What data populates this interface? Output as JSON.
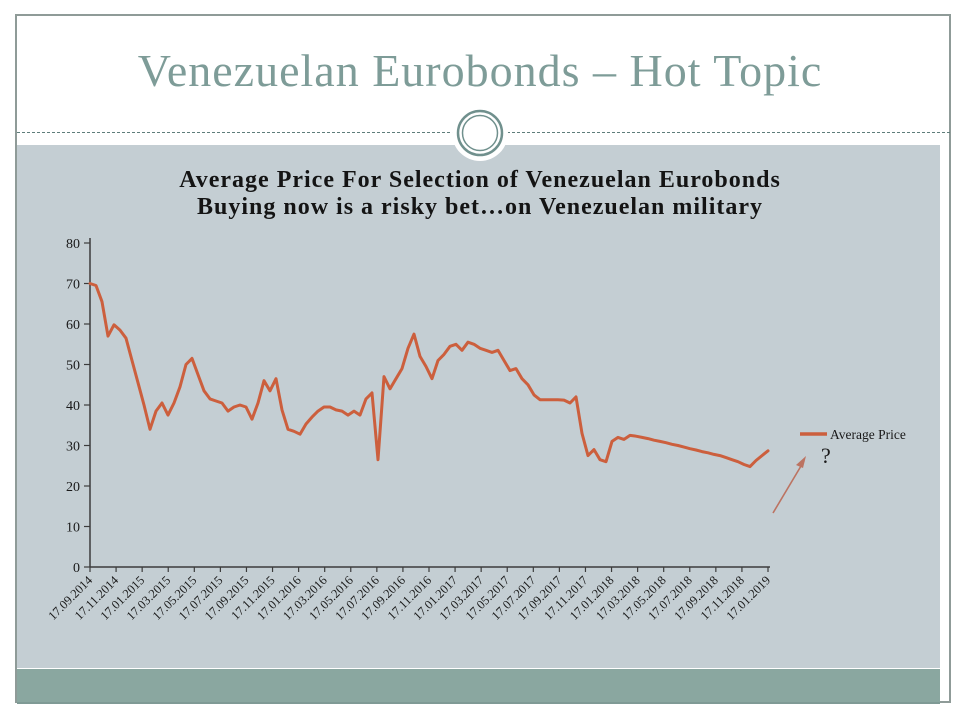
{
  "slide": {
    "title": "Venezuelan Eurobonds – Hot Topic"
  },
  "chart": {
    "title_line1": "Average Price For Selection of Venezuelan Eurobonds",
    "title_line2": "Buying now is a risky bet…on Venezuelan military",
    "legend_label": "Average Price",
    "annotation_text": "?"
  },
  "chart_data": {
    "type": "line",
    "title": "Average Price For Selection of Venezuelan Eurobonds",
    "subtitle": "Buying now is a risky bet…on Venezuelan military",
    "xlabel": "",
    "ylabel": "",
    "ylim": [
      0,
      80
    ],
    "yticks": [
      0,
      10,
      20,
      30,
      40,
      50,
      60,
      70,
      80
    ],
    "grid": false,
    "legend_position": "right",
    "categories": [
      "17.09.2014",
      "17.11.2014",
      "17.01.2015",
      "17.03.2015",
      "17.05.2015",
      "17.07.2015",
      "17.09.2015",
      "17.11.2015",
      "17.01.2016",
      "17.03.2016",
      "17.05.2016",
      "17.07.2016",
      "17.09.2016",
      "17.11.2016",
      "17.01.2017",
      "17.03.2017",
      "17.05.2017",
      "17.07.2017",
      "17.09.2017",
      "17.11.2017",
      "17.01.2018",
      "17.03.2018",
      "17.05.2018",
      "17.07.2018",
      "17.09.2018",
      "17.11.2018",
      "17.01.2019"
    ],
    "series": [
      {
        "name": "Average Price",
        "values": [
          70,
          69.5,
          65.5,
          57,
          59.8,
          58.5,
          56.5,
          51,
          45.5,
          40,
          34,
          38.5,
          40.5,
          37.5,
          40.5,
          44.5,
          50,
          51.5,
          47.5,
          43.5,
          41.5,
          41,
          40.5,
          38.5,
          39.5,
          40,
          39.5,
          36.5,
          40.5,
          46,
          43.5,
          46.5,
          38.8,
          34,
          33.5,
          32.8,
          35.3,
          37,
          38.5,
          39.5,
          39.5,
          38.8,
          38.5,
          37.5,
          38.5,
          37.5,
          41.5,
          43,
          26.5,
          47,
          44,
          46.5,
          49,
          54,
          57.5,
          52,
          49.5,
          46.5,
          51,
          52.5,
          54.5,
          55,
          53.5,
          55.5,
          55,
          54,
          53.5,
          53,
          53.5,
          51,
          48.5,
          49,
          46.5,
          45,
          42.5,
          41.3,
          41.3,
          41.3,
          41.3,
          41.2,
          40.5,
          42,
          33,
          27.5,
          29,
          26.5,
          26,
          31,
          32,
          31.5,
          32.5,
          32.3,
          32,
          31.7,
          31.3,
          31,
          30.7,
          30.3,
          30,
          29.6,
          29.2,
          28.9,
          28.5,
          28.2,
          27.8,
          27.5,
          27,
          26.5,
          26,
          25.3,
          24.8,
          26.3,
          27.5,
          28.7
        ]
      }
    ],
    "annotations": [
      {
        "type": "text",
        "text": "?",
        "near": "line end"
      },
      {
        "type": "arrow",
        "direction": "up-right",
        "points_at": "line end / question mark"
      }
    ]
  },
  "colors": {
    "line": "#cc5f3d",
    "arrow": "#bc7361",
    "panel_bg": "#c4ced3",
    "footer_bar": "#8aa7a0",
    "title_text": "#7e9c98",
    "axis": "#3c3c3c",
    "label_text": "#1a1a1a"
  }
}
